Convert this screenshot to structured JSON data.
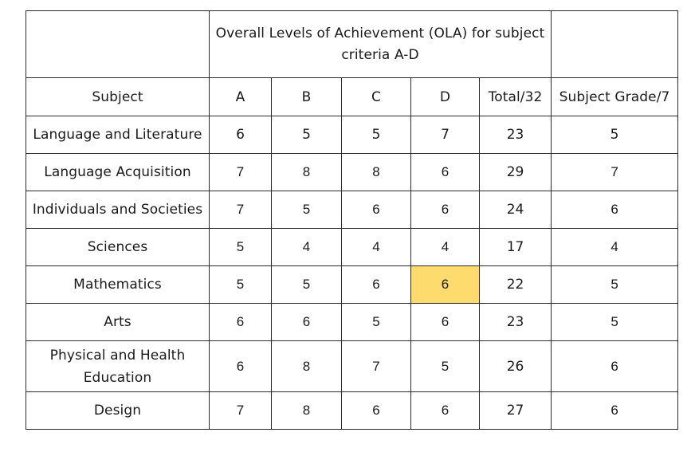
{
  "table": {
    "title": "Overall Levels of Achievement (OLA) for subject criteria A-D",
    "title_line1": "Overall Levels of Achievement (OLA) for subject",
    "title_line2": "criteria A-D",
    "headers": [
      "Subject",
      "A",
      "B",
      "C",
      "D",
      "Total/32",
      "Subject Grade/7"
    ],
    "rows": [
      {
        "subject": "Language and Literature",
        "a": "6",
        "b": "5",
        "c": "5",
        "d": "7",
        "total": "23",
        "grade": "5"
      },
      {
        "subject": "Language Acquisition",
        "a": "7",
        "b": "8",
        "c": "8",
        "d": "6",
        "total": "29",
        "grade": "7"
      },
      {
        "subject": "Individuals and Societies",
        "a": "7",
        "b": "5",
        "c": "6",
        "d": "6",
        "total": "24",
        "grade": "6"
      },
      {
        "subject": "Sciences",
        "a": "5",
        "b": "4",
        "c": "4",
        "d": "4",
        "total": "17",
        "grade": "4"
      },
      {
        "subject": "Mathematics",
        "a": "5",
        "b": "5",
        "c": "6",
        "d": "6",
        "total": "22",
        "grade": "5"
      },
      {
        "subject": "Arts",
        "a": "6",
        "b": "6",
        "c": "5",
        "d": "6",
        "total": "23",
        "grade": "5"
      },
      {
        "subject": "Physical and Health Education",
        "subject_line1": "Physical and Health",
        "subject_line2": "Education",
        "a": "6",
        "b": "8",
        "c": "7",
        "d": "5",
        "total": "26",
        "grade": "6"
      },
      {
        "subject": "Design",
        "a": "7",
        "b": "8",
        "c": "6",
        "d": "6",
        "total": "27",
        "grade": "6"
      }
    ],
    "highlight": {
      "row": "Mathematics",
      "column": "D",
      "color": "#fddb6d"
    }
  },
  "colors": {
    "border": "#2b2b2b",
    "background": "#ffffff",
    "highlight": "#fddb6d"
  }
}
